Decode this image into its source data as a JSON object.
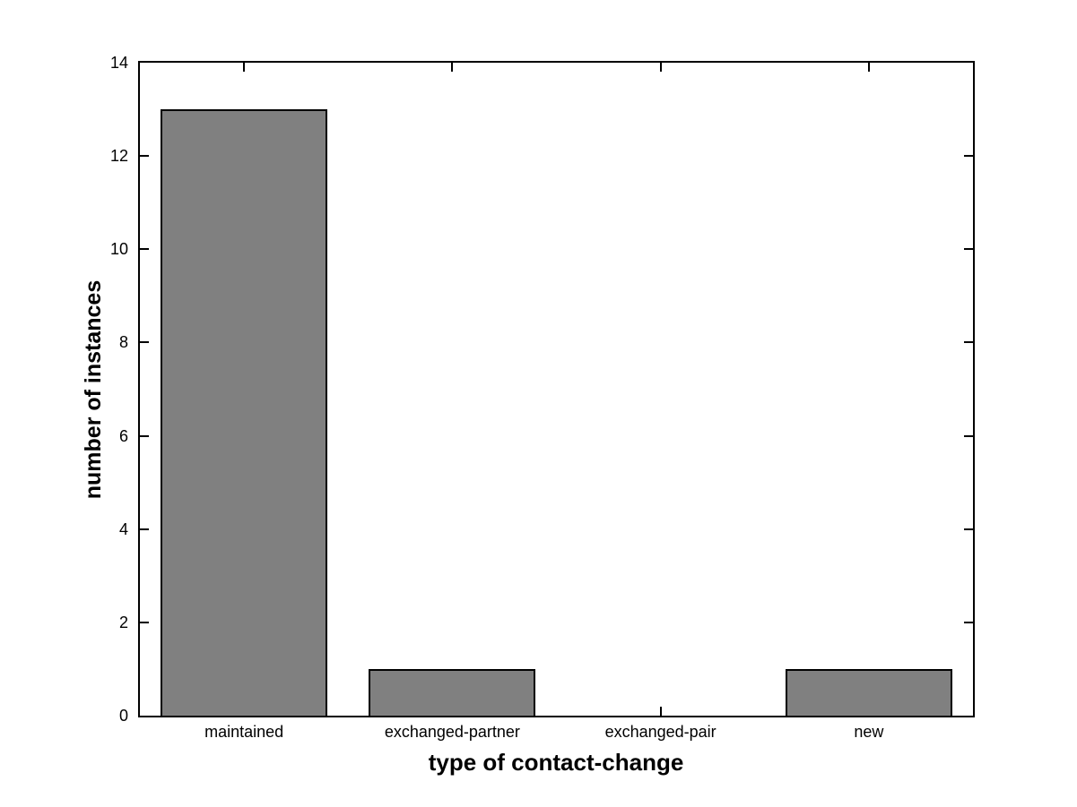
{
  "chart_data": {
    "type": "bar",
    "title": "",
    "categories": [
      "maintained",
      "exchanged-partner",
      "exchanged-pair",
      "new"
    ],
    "values": [
      13,
      1,
      0,
      1
    ],
    "xlabel": "type of contact-change",
    "ylabel": "number of instances",
    "ylim": [
      0,
      14
    ],
    "yticks": [
      0,
      2,
      4,
      6,
      8,
      10,
      12,
      14
    ],
    "bar_width_fraction": 0.8,
    "grid": false,
    "legend_position": "none",
    "colors": {
      "bar_fill": "#808080",
      "bar_edge": "#000000",
      "axis": "#000000",
      "background": "#ffffff",
      "text": "#000000"
    }
  }
}
